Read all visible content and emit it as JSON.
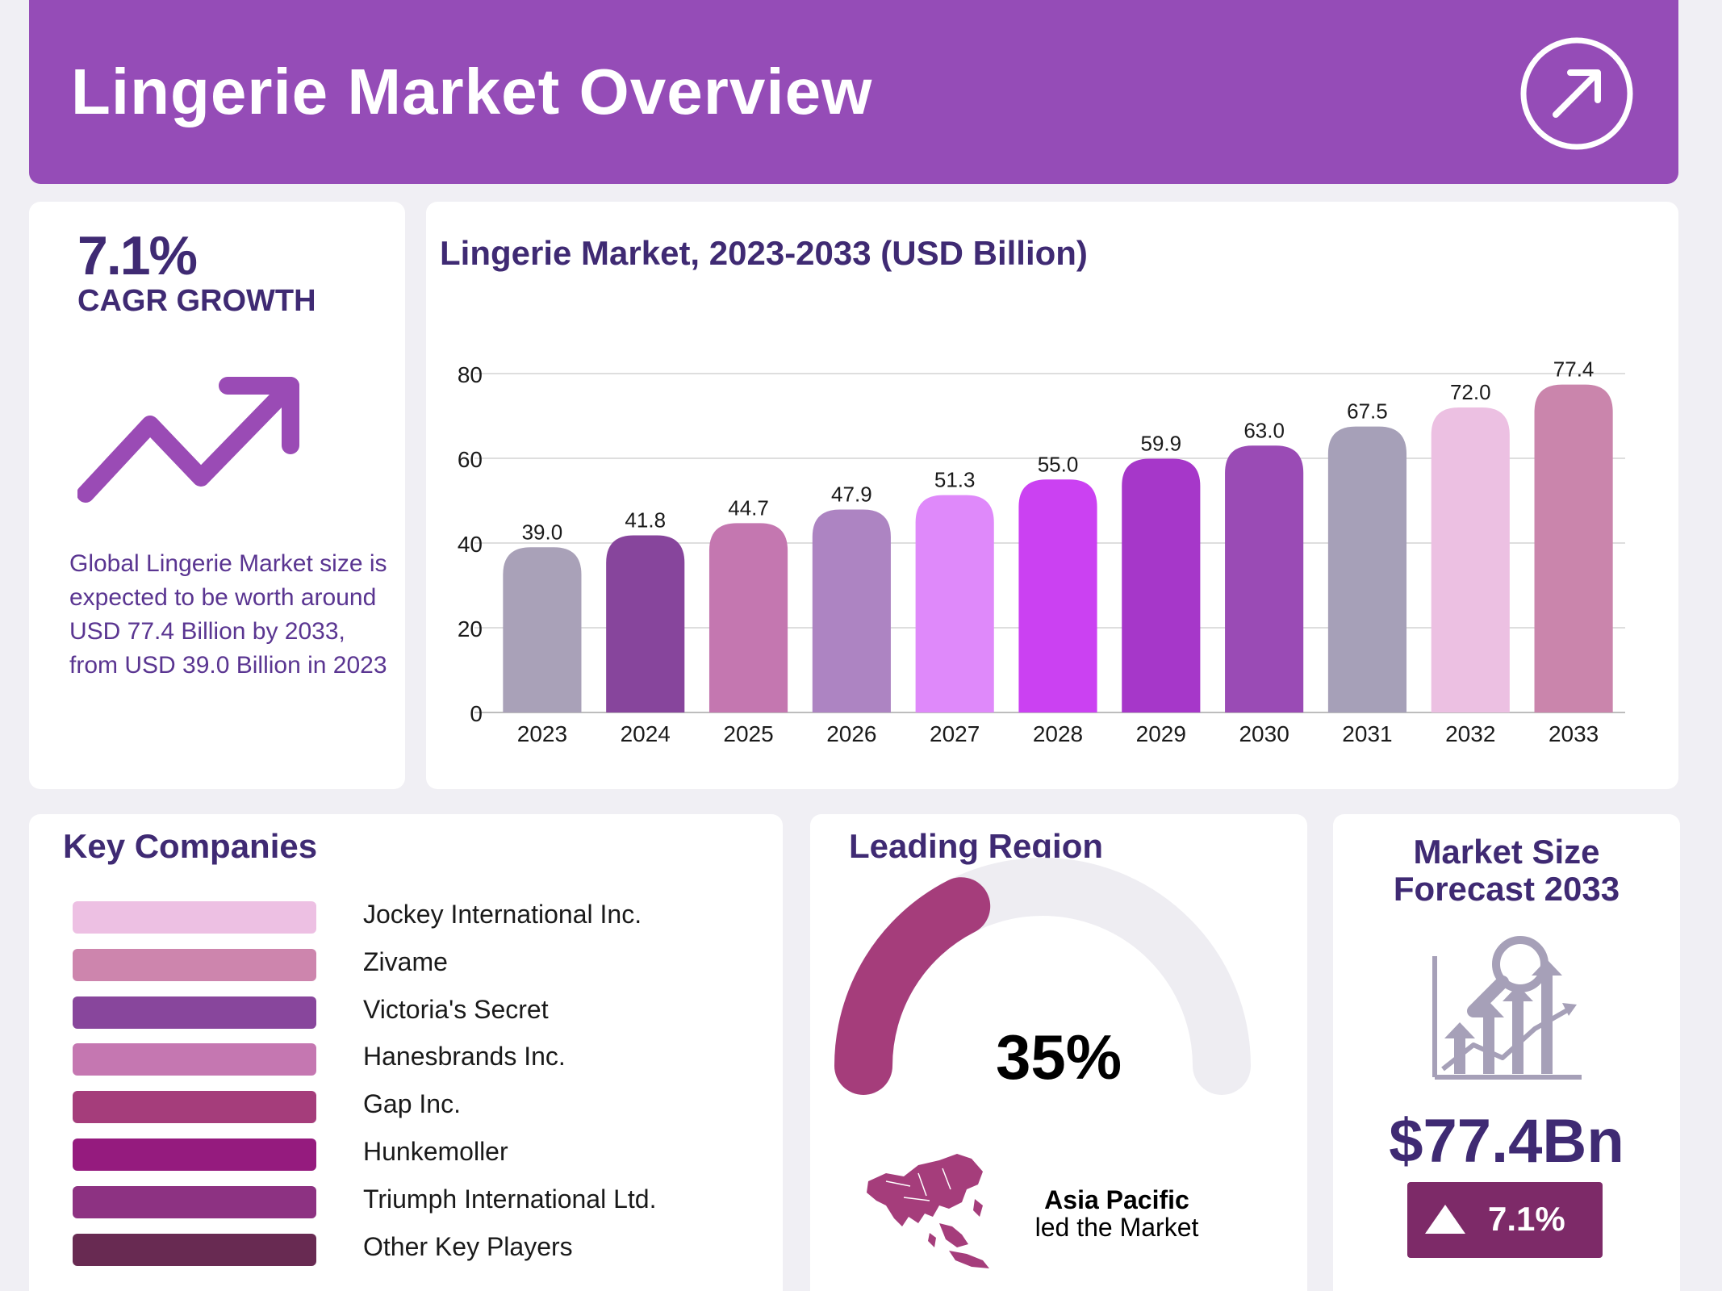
{
  "header": {
    "title": "Lingerie Market Overview"
  },
  "cagr": {
    "value": "7.1%",
    "label": "CAGR GROWTH",
    "summary": "Global Lingerie Market size is expected to be worth around USD 77.4 Billion by 2033, from USD 39.0 Billion in 2023"
  },
  "chart_data": {
    "type": "bar",
    "title": "Lingerie Market, 2023-2033 (USD Billion)",
    "categories": [
      "2023",
      "2024",
      "2025",
      "2026",
      "2027",
      "2028",
      "2029",
      "2030",
      "2031",
      "2032",
      "2033"
    ],
    "values": [
      39.0,
      41.8,
      44.7,
      47.9,
      51.3,
      55.0,
      59.9,
      63.0,
      67.5,
      72.0,
      77.4
    ],
    "value_labels": [
      "39.0",
      "41.8",
      "44.7",
      "47.9",
      "51.3",
      "55.0",
      "59.9",
      "63.0",
      "67.5",
      "72.0",
      "77.4"
    ],
    "colors": [
      "#a9a1b8",
      "#87459c",
      "#c477b0",
      "#ad84c2",
      "#df89fa",
      "#cb41f2",
      "#a637c9",
      "#9a4bb5",
      "#a6a0b8",
      "#ecc0e2",
      "#ca85ac"
    ],
    "yticks": [
      0,
      20,
      40,
      60,
      80
    ],
    "ylim": [
      0,
      80
    ],
    "xlabel": "",
    "ylabel": "",
    "grid": true
  },
  "companies": {
    "title": "Key Companies",
    "items": [
      {
        "name": "Jockey International Inc.",
        "color": "#edc0e3"
      },
      {
        "name": "Zivame",
        "color": "#cd85ad"
      },
      {
        "name": "Victoria's Secret",
        "color": "#88469c"
      },
      {
        "name": "Hanesbrands Inc.",
        "color": "#c577b1"
      },
      {
        "name": "Gap Inc.",
        "color": "#a53d7b"
      },
      {
        "name": "Hunkemoller",
        "color": "#951b7e"
      },
      {
        "name": "Triumph International Ltd.",
        "color": "#8d3282"
      },
      {
        "name": "Other Key Players",
        "color": "#682a52"
      }
    ]
  },
  "region": {
    "title": "Leading Region",
    "share": 35,
    "share_label": "35%",
    "name": "Asia Pacific",
    "caption": "led the Market",
    "gauge_color": "#a53d7b",
    "track_color": "#eeedf2"
  },
  "forecast": {
    "title_line1": "Market Size",
    "title_line2": "Forecast 2033",
    "value": "$77.4Bn",
    "growth": "7.1%",
    "badge_color": "#7d2a68"
  }
}
